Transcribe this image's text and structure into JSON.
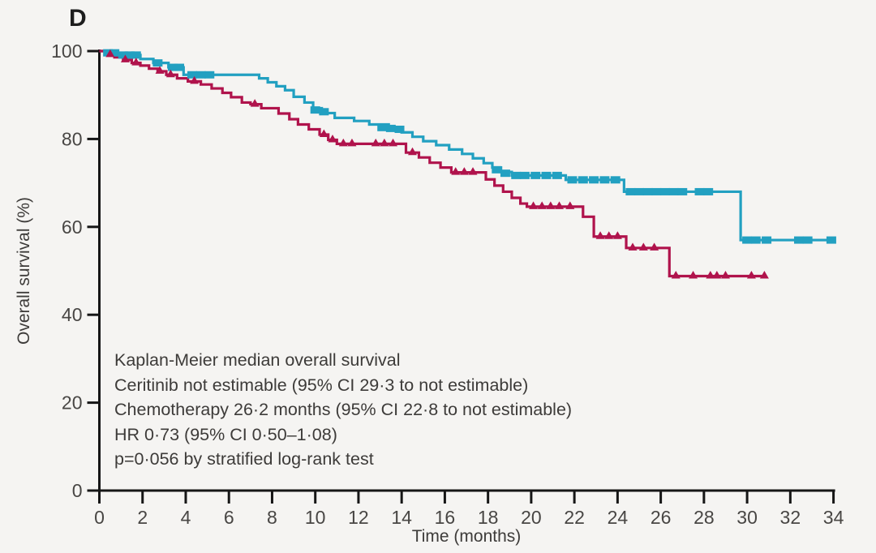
{
  "panel_label": "D",
  "colors": {
    "ceritinib": "#22a0c1",
    "chemotherapy": "#b0134c",
    "axis": "#161616",
    "tick_text": "#484644",
    "annotation_text": "#3d3b39",
    "background": "#f5f4f2"
  },
  "annotation": {
    "lines": [
      "Kaplan-Meier median overall survival",
      "Ceritinib not estimable (95% CI 29·3 to not estimable)",
      "Chemotherapy 26·2 months (95% CI 22·8 to not estimable)",
      "HR 0·73 (95% CI 0·50–1·08)",
      "p=0·056 by stratified log-rank test"
    ]
  },
  "chart_data": {
    "type": "line",
    "subtype": "kaplan-meier-step",
    "title": "",
    "xlabel": "Time (months)",
    "ylabel": "Overall survival (%)",
    "xlim": [
      0,
      34
    ],
    "ylim": [
      0,
      100
    ],
    "xticks": [
      0,
      2,
      4,
      6,
      8,
      10,
      12,
      14,
      16,
      18,
      20,
      22,
      24,
      26,
      28,
      30,
      32,
      34
    ],
    "yticks": [
      0,
      20,
      40,
      60,
      80,
      100
    ],
    "grid": false,
    "legend_position": "none",
    "series": [
      {
        "name": "Ceritinib",
        "color": "#22a0c1",
        "censor_marker": "square",
        "steps": [
          [
            0,
            100
          ],
          [
            0.3,
            99.6
          ],
          [
            1.0,
            99.1
          ],
          [
            1.9,
            98.2
          ],
          [
            2.5,
            97.3
          ],
          [
            3.2,
            96.3
          ],
          [
            3.9,
            94.6
          ],
          [
            7.4,
            93.8
          ],
          [
            7.8,
            92.9
          ],
          [
            8.2,
            92.0
          ],
          [
            8.6,
            91.1
          ],
          [
            9.0,
            89.6
          ],
          [
            9.5,
            88.3
          ],
          [
            9.9,
            87.0
          ],
          [
            10.3,
            85.9
          ],
          [
            10.9,
            84.8
          ],
          [
            11.8,
            84.1
          ],
          [
            12.5,
            83.3
          ],
          [
            13.4,
            82.4
          ],
          [
            14.0,
            81.5
          ],
          [
            14.5,
            80.5
          ],
          [
            15.0,
            79.5
          ],
          [
            15.6,
            78.6
          ],
          [
            16.2,
            77.6
          ],
          [
            16.8,
            76.6
          ],
          [
            17.3,
            75.6
          ],
          [
            17.8,
            74.5
          ],
          [
            18.2,
            73.5
          ],
          [
            18.6,
            72.5
          ],
          [
            19.1,
            71.7
          ],
          [
            21.6,
            70.7
          ],
          [
            24.3,
            68.0
          ],
          [
            29.7,
            57.0
          ],
          [
            34.0,
            57.0
          ]
        ],
        "censors": [
          [
            0.4,
            99.6
          ],
          [
            0.7,
            99.6
          ],
          [
            1.1,
            99.1
          ],
          [
            1.4,
            99.1
          ],
          [
            1.7,
            99.1
          ],
          [
            2.7,
            97.3
          ],
          [
            3.4,
            96.3
          ],
          [
            3.7,
            96.3
          ],
          [
            4.3,
            94.6
          ],
          [
            4.7,
            94.6
          ],
          [
            5.1,
            94.6
          ],
          [
            10.0,
            86.6
          ],
          [
            10.4,
            86.2
          ],
          [
            13.1,
            82.6
          ],
          [
            13.5,
            82.4
          ],
          [
            13.9,
            82.2
          ],
          [
            18.4,
            73.0
          ],
          [
            18.8,
            72.2
          ],
          [
            19.3,
            71.7
          ],
          [
            19.7,
            71.7
          ],
          [
            20.2,
            71.7
          ],
          [
            20.7,
            71.7
          ],
          [
            21.2,
            71.7
          ],
          [
            21.9,
            70.7
          ],
          [
            22.4,
            70.7
          ],
          [
            22.9,
            70.7
          ],
          [
            23.4,
            70.7
          ],
          [
            23.9,
            70.7
          ],
          [
            24.6,
            68.0
          ],
          [
            25.0,
            68.0
          ],
          [
            25.4,
            68.0
          ],
          [
            25.8,
            68.0
          ],
          [
            26.2,
            68.0
          ],
          [
            26.6,
            68.0
          ],
          [
            27.0,
            68.0
          ],
          [
            27.8,
            68.0
          ],
          [
            28.2,
            68.0
          ],
          [
            30.0,
            57.0
          ],
          [
            30.4,
            57.0
          ],
          [
            30.9,
            57.0
          ],
          [
            32.4,
            57.0
          ],
          [
            32.8,
            57.0
          ],
          [
            33.9,
            57.0
          ]
        ]
      },
      {
        "name": "Chemotherapy",
        "color": "#b0134c",
        "censor_marker": "triangle",
        "steps": [
          [
            0,
            100
          ],
          [
            0.4,
            99.2
          ],
          [
            0.7,
            98.6
          ],
          [
            1.1,
            98.0
          ],
          [
            1.5,
            97.3
          ],
          [
            1.9,
            96.7
          ],
          [
            2.3,
            96.0
          ],
          [
            2.7,
            95.4
          ],
          [
            3.1,
            94.6
          ],
          [
            3.6,
            93.8
          ],
          [
            4.1,
            93.1
          ],
          [
            4.7,
            92.4
          ],
          [
            5.2,
            91.5
          ],
          [
            5.7,
            90.5
          ],
          [
            6.1,
            89.5
          ],
          [
            6.6,
            88.3
          ],
          [
            7.0,
            87.9
          ],
          [
            7.5,
            87.0
          ],
          [
            8.3,
            85.8
          ],
          [
            8.8,
            84.5
          ],
          [
            9.2,
            83.3
          ],
          [
            9.7,
            82.2
          ],
          [
            10.2,
            81.0
          ],
          [
            10.6,
            79.8
          ],
          [
            11.0,
            78.9
          ],
          [
            14.2,
            76.9
          ],
          [
            14.8,
            75.8
          ],
          [
            15.3,
            74.6
          ],
          [
            15.8,
            73.5
          ],
          [
            16.3,
            72.4
          ],
          [
            17.9,
            70.8
          ],
          [
            18.3,
            69.4
          ],
          [
            18.7,
            68.0
          ],
          [
            19.1,
            66.6
          ],
          [
            19.5,
            65.3
          ],
          [
            19.8,
            64.6
          ],
          [
            22.4,
            62.3
          ],
          [
            22.9,
            57.8
          ],
          [
            24.4,
            55.2
          ],
          [
            26.4,
            48.8
          ],
          [
            30.9,
            48.8
          ]
        ],
        "censors": [
          [
            0.5,
            99.2
          ],
          [
            1.2,
            98.0
          ],
          [
            1.7,
            97.3
          ],
          [
            2.8,
            95.4
          ],
          [
            3.3,
            94.6
          ],
          [
            4.4,
            93.1
          ],
          [
            7.2,
            87.9
          ],
          [
            10.4,
            81.0
          ],
          [
            10.8,
            79.8
          ],
          [
            11.3,
            78.9
          ],
          [
            11.7,
            78.9
          ],
          [
            12.8,
            78.9
          ],
          [
            13.2,
            78.9
          ],
          [
            13.6,
            78.9
          ],
          [
            14.5,
            76.9
          ],
          [
            16.5,
            72.4
          ],
          [
            16.9,
            72.4
          ],
          [
            17.3,
            72.4
          ],
          [
            20.1,
            64.6
          ],
          [
            20.5,
            64.6
          ],
          [
            20.9,
            64.6
          ],
          [
            21.3,
            64.6
          ],
          [
            21.8,
            64.6
          ],
          [
            23.2,
            57.8
          ],
          [
            23.6,
            57.8
          ],
          [
            24.0,
            57.8
          ],
          [
            24.7,
            55.2
          ],
          [
            25.2,
            55.2
          ],
          [
            25.7,
            55.2
          ],
          [
            26.7,
            48.8
          ],
          [
            27.5,
            48.8
          ],
          [
            28.3,
            48.8
          ],
          [
            28.6,
            48.8
          ],
          [
            29.0,
            48.8
          ],
          [
            30.2,
            48.8
          ],
          [
            30.8,
            48.8
          ]
        ]
      }
    ]
  }
}
